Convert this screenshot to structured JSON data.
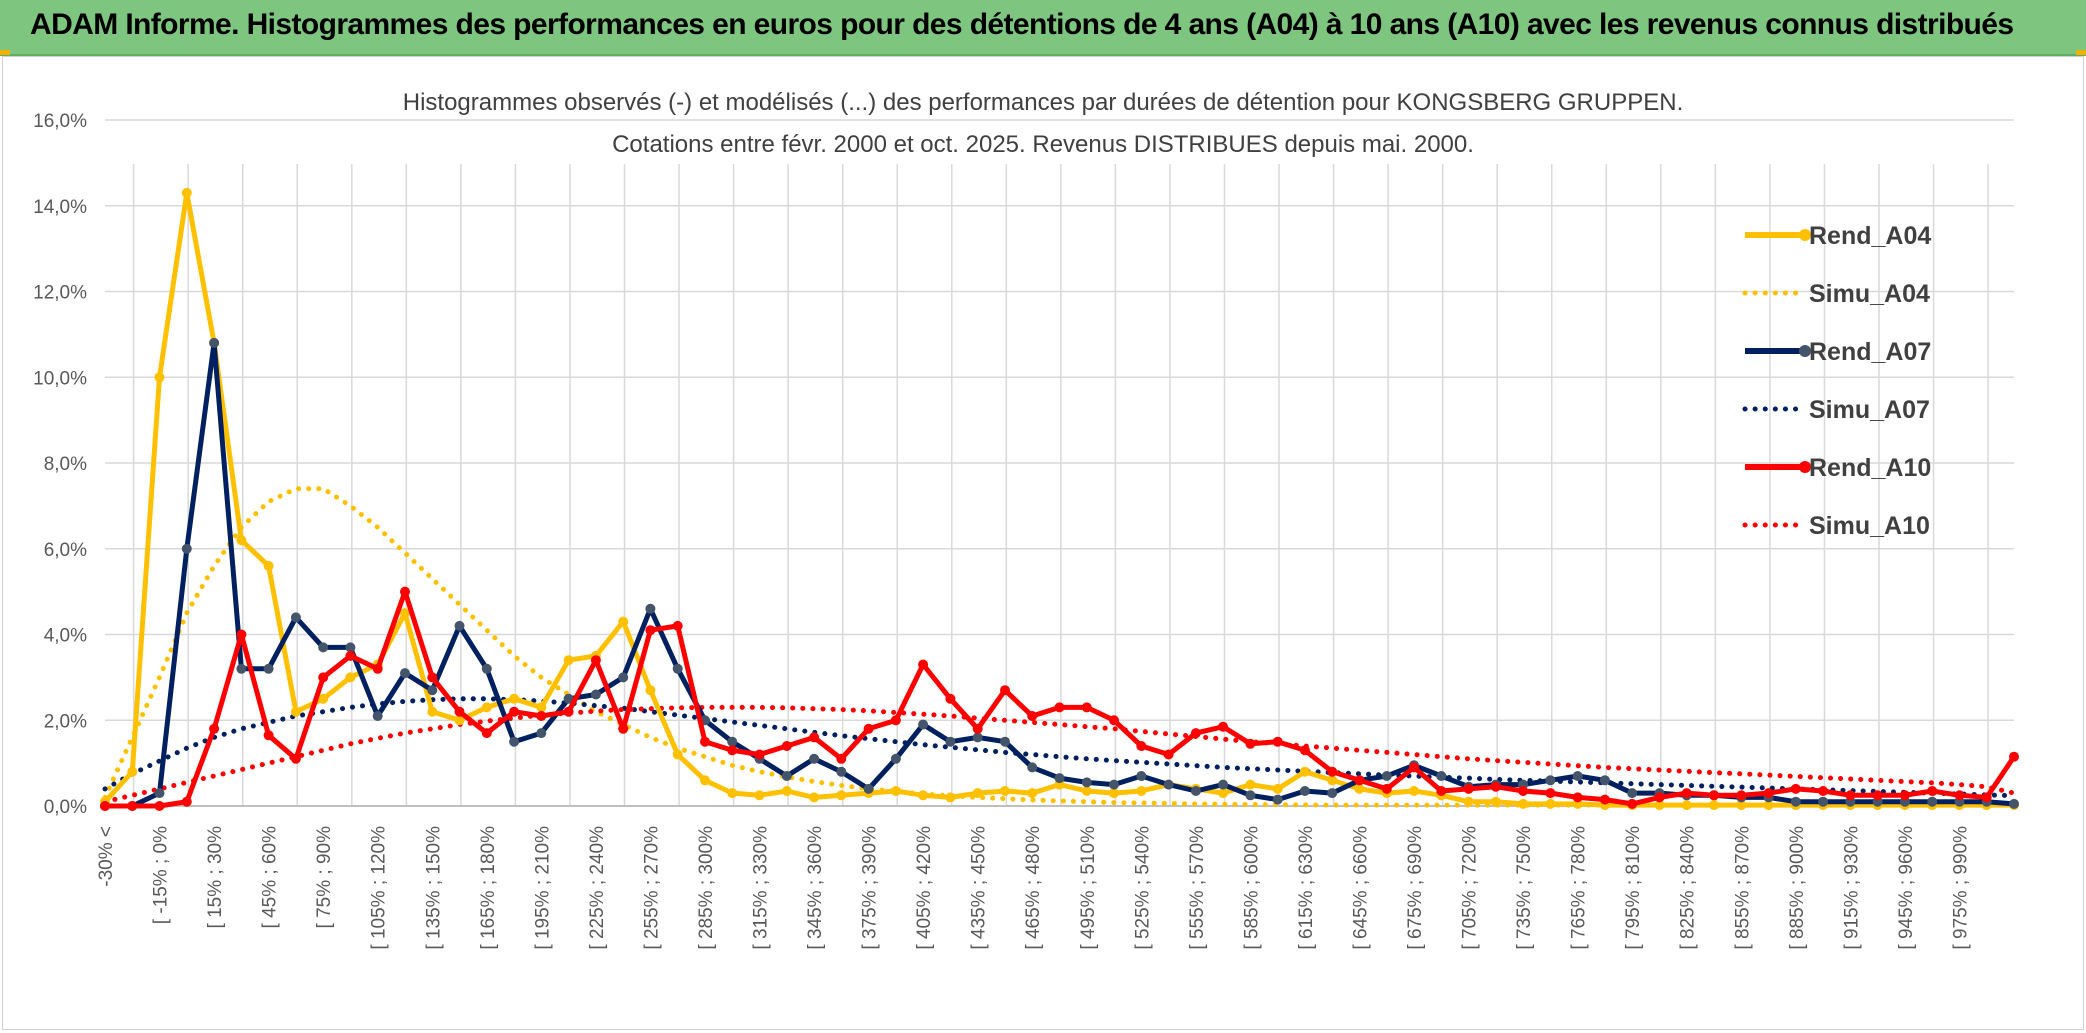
{
  "banner": {
    "title": "ADAM Informe. Histogrammes des performances en euros pour des détentions de 4 ans (A04) à 10 ans (A10) avec les revenus connus distribués"
  },
  "chart_data": {
    "type": "line",
    "title_line1": "Histogrammes observés (-) et modélisés (...) des performances par durées de détention pour KONGSBERG GRUPPEN.",
    "title_line2": "Cotations entre févr. 2000 et oct. 2025. Revenus DISTRIBUES depuis mai. 2000.",
    "xlabel": "",
    "ylabel": "",
    "ylim": [
      0,
      16
    ],
    "ytick_values": [
      0,
      2,
      4,
      6,
      8,
      10,
      12,
      14,
      16
    ],
    "ytick_labels": [
      "0,0%",
      "2,0%",
      "4,0%",
      "6,0%",
      "8,0%",
      "10,0%",
      "12,0%",
      "14,0%",
      "16,0%"
    ],
    "grid": true,
    "legend_position": "top-right",
    "x_tick_labels": [
      "-30% <",
      "[ -15% ; 0%",
      "[ 15% ; 30%",
      "[ 45% ; 60%",
      "[ 75% ; 90%",
      "[ 105% ; 120%",
      "[ 135% ; 150%",
      "[ 165% ; 180%",
      "[ 195% ; 210%",
      "[ 225% ; 240%",
      "[ 255% ; 270%",
      "[ 285% ; 300%",
      "[ 315% ; 330%",
      "[ 345% ; 360%",
      "[ 375% ; 390%",
      "[ 405% ; 420%",
      "[ 435% ; 450%",
      "[ 465% ; 480%",
      "[ 495% ; 510%",
      "[ 525% ; 540%",
      "[ 555% ; 570%",
      "[ 585% ; 600%",
      "[ 615% ; 630%",
      "[ 645% ; 660%",
      "[ 675% ; 690%",
      "[ 705% ; 720%",
      "[ 735% ; 750%",
      "[ 765% ; 780%",
      "[ 795% ; 810%",
      "[ 825% ; 840%",
      "[ 855% ; 870%",
      "[ 885% ; 900%",
      "[ 915% ; 930%",
      "[ 945% ; 960%",
      "[ 975% ; 990%"
    ],
    "series": [
      {
        "name": "Rend_A04",
        "style": "solid",
        "markers": true,
        "color": "#ffc000",
        "values": [
          0.1,
          0.8,
          10.0,
          14.3,
          10.8,
          6.2,
          5.6,
          2.2,
          2.5,
          3.0,
          3.3,
          4.5,
          2.2,
          2.0,
          2.3,
          2.5,
          2.3,
          3.4,
          3.5,
          4.3,
          2.7,
          1.2,
          0.6,
          0.3,
          0.25,
          0.35,
          0.2,
          0.25,
          0.3,
          0.35,
          0.25,
          0.2,
          0.3,
          0.35,
          0.3,
          0.5,
          0.35,
          0.3,
          0.35,
          0.5,
          0.4,
          0.3,
          0.5,
          0.4,
          0.8,
          0.6,
          0.4,
          0.3,
          0.35,
          0.25,
          0.1,
          0.1,
          0.05,
          0.05,
          0.05,
          0.02,
          0.02,
          0.02,
          0.02,
          0.02,
          0.02,
          0.02,
          0.02,
          0.02,
          0.02,
          0.02,
          0.02,
          0.02,
          0.02,
          0.02,
          0.02
        ]
      },
      {
        "name": "Simu_A04",
        "style": "dotted",
        "markers": false,
        "color": "#ffc000",
        "values": [
          0.2,
          1.6,
          3.0,
          4.5,
          5.6,
          6.5,
          7.1,
          7.4,
          7.4,
          7.0,
          6.5,
          5.9,
          5.3,
          4.7,
          4.1,
          3.5,
          3.0,
          2.6,
          2.2,
          1.9,
          1.6,
          1.35,
          1.15,
          0.95,
          0.8,
          0.68,
          0.57,
          0.48,
          0.4,
          0.34,
          0.28,
          0.24,
          0.2,
          0.17,
          0.14,
          0.12,
          0.1,
          0.08,
          0.07,
          0.06,
          0.05,
          0.04,
          0.035,
          0.03,
          0.025,
          0.02,
          0.02,
          0.02,
          0.02,
          0.02,
          0.02,
          0.02,
          0.02,
          0.02,
          0.02,
          0.02,
          0.02,
          0.02,
          0.02,
          0.02,
          0.02,
          0.02,
          0.02,
          0.02,
          0.02,
          0.02,
          0.02,
          0.02,
          0.02,
          0.02,
          0.02
        ]
      },
      {
        "name": "Rend_A07",
        "style": "solid",
        "markers": true,
        "color": "#002060",
        "values": [
          0.0,
          0.0,
          0.3,
          6.0,
          10.8,
          3.2,
          3.2,
          4.4,
          3.7,
          3.7,
          2.1,
          3.1,
          2.7,
          4.2,
          3.2,
          1.5,
          1.7,
          2.5,
          2.6,
          3.0,
          4.6,
          3.2,
          2.0,
          1.5,
          1.1,
          0.7,
          1.1,
          0.8,
          0.4,
          1.1,
          1.9,
          1.5,
          1.6,
          1.5,
          0.9,
          0.65,
          0.55,
          0.5,
          0.7,
          0.5,
          0.35,
          0.5,
          0.25,
          0.15,
          0.35,
          0.3,
          0.6,
          0.7,
          0.95,
          0.7,
          0.45,
          0.5,
          0.5,
          0.6,
          0.7,
          0.6,
          0.3,
          0.3,
          0.25,
          0.25,
          0.2,
          0.2,
          0.1,
          0.1,
          0.1,
          0.1,
          0.1,
          0.1,
          0.1,
          0.1,
          0.05
        ]
      },
      {
        "name": "Simu_A07",
        "style": "dotted",
        "markers": false,
        "color": "#002060",
        "values": [
          0.4,
          0.75,
          1.05,
          1.35,
          1.6,
          1.8,
          1.95,
          2.1,
          2.2,
          2.3,
          2.38,
          2.44,
          2.48,
          2.5,
          2.5,
          2.48,
          2.45,
          2.4,
          2.34,
          2.28,
          2.2,
          2.12,
          2.04,
          1.96,
          1.88,
          1.8,
          1.72,
          1.64,
          1.57,
          1.5,
          1.43,
          1.37,
          1.31,
          1.25,
          1.2,
          1.15,
          1.1,
          1.06,
          1.02,
          0.98,
          0.94,
          0.9,
          0.87,
          0.84,
          0.81,
          0.78,
          0.75,
          0.72,
          0.7,
          0.67,
          0.65,
          0.62,
          0.6,
          0.58,
          0.56,
          0.54,
          0.52,
          0.5,
          0.48,
          0.46,
          0.44,
          0.42,
          0.4,
          0.38,
          0.36,
          0.34,
          0.32,
          0.3,
          0.28,
          0.26,
          0.24
        ]
      },
      {
        "name": "Rend_A10",
        "style": "solid",
        "markers": true,
        "color": "#ff0000",
        "values": [
          0.0,
          0.0,
          0.0,
          0.1,
          1.8,
          4.0,
          1.65,
          1.1,
          3.0,
          3.5,
          3.2,
          5.0,
          3.0,
          2.2,
          1.7,
          2.2,
          2.1,
          2.2,
          3.4,
          1.8,
          4.1,
          4.2,
          1.5,
          1.3,
          1.2,
          1.4,
          1.6,
          1.1,
          1.8,
          2.0,
          3.3,
          2.5,
          1.8,
          2.7,
          2.1,
          2.3,
          2.3,
          2.0,
          1.4,
          1.2,
          1.7,
          1.85,
          1.45,
          1.5,
          1.3,
          0.8,
          0.6,
          0.4,
          0.9,
          0.35,
          0.4,
          0.45,
          0.35,
          0.3,
          0.2,
          0.15,
          0.05,
          0.2,
          0.3,
          0.25,
          0.25,
          0.3,
          0.4,
          0.35,
          0.25,
          0.25,
          0.25,
          0.35,
          0.25,
          0.2,
          1.15
        ]
      },
      {
        "name": "Simu_A10",
        "style": "dotted",
        "markers": false,
        "color": "#ff0000",
        "values": [
          0.1,
          0.25,
          0.4,
          0.55,
          0.7,
          0.85,
          1.0,
          1.15,
          1.3,
          1.45,
          1.58,
          1.7,
          1.8,
          1.9,
          1.98,
          2.05,
          2.12,
          2.17,
          2.21,
          2.25,
          2.27,
          2.29,
          2.3,
          2.3,
          2.3,
          2.29,
          2.27,
          2.25,
          2.22,
          2.18,
          2.14,
          2.1,
          2.05,
          2.0,
          1.95,
          1.9,
          1.85,
          1.8,
          1.74,
          1.68,
          1.62,
          1.56,
          1.5,
          1.45,
          1.4,
          1.35,
          1.3,
          1.25,
          1.2,
          1.15,
          1.1,
          1.06,
          1.02,
          0.98,
          0.94,
          0.9,
          0.87,
          0.84,
          0.81,
          0.78,
          0.75,
          0.72,
          0.69,
          0.66,
          0.63,
          0.6,
          0.57,
          0.54,
          0.5,
          0.45,
          0.3
        ]
      }
    ]
  }
}
